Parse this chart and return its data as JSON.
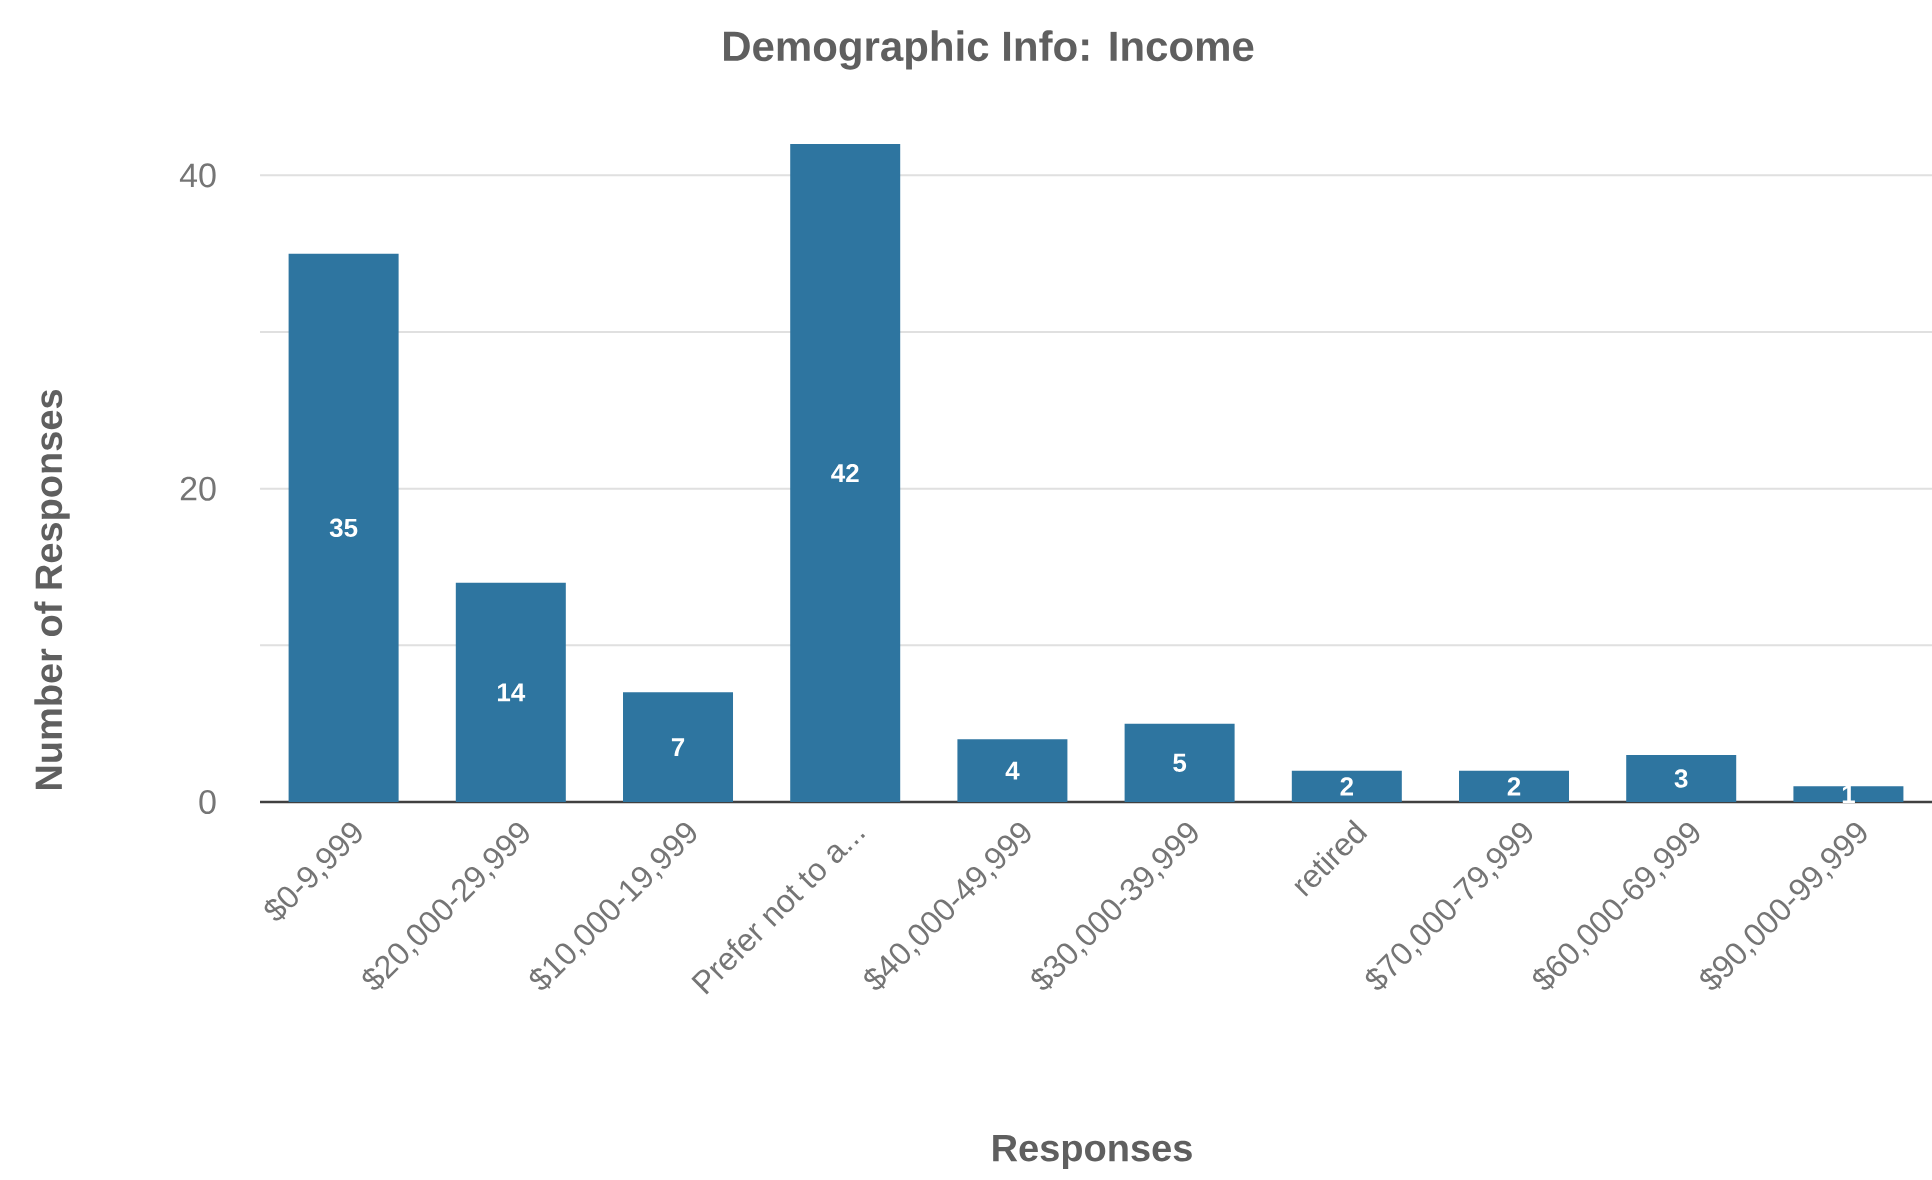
{
  "chart_data": {
    "type": "bar",
    "title": "Demographic Info: Income",
    "xlabel": "Responses",
    "ylabel": "Number of Responses",
    "categories": [
      "$0-9,999",
      "$20,000-29,999",
      "$10,000-19,999",
      "Prefer not to a...",
      "$40,000-49,999",
      "$30,000-39,999",
      "retired",
      "$70,000-79,999",
      "$60,000-69,999",
      "$90,000-99,999"
    ],
    "values": [
      35,
      14,
      7,
      42,
      4,
      5,
      2,
      2,
      3,
      1
    ],
    "color": "#2e75a0",
    "ylim": [
      0,
      42
    ],
    "yticks": [
      0,
      {
        "value": 10,
        "label": null
      },
      20,
      {
        "value": 30,
        "label": null
      },
      40
    ],
    "grid": "y",
    "data_labels": true
  }
}
